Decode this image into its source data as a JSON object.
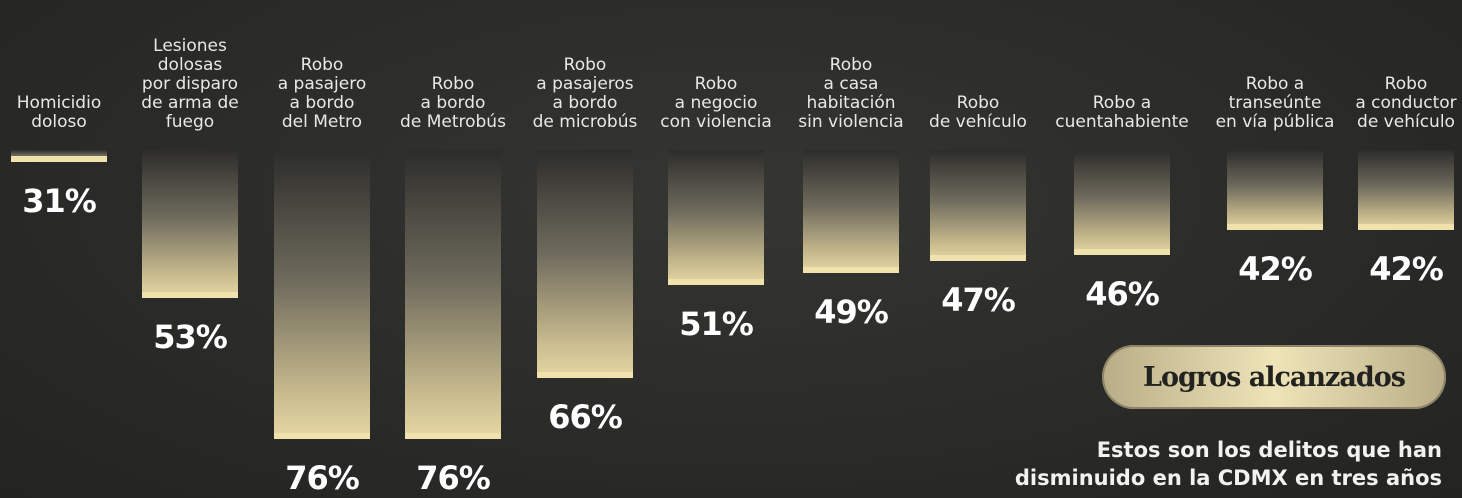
{
  "chart_data": {
    "type": "bar",
    "orientation": "hanging",
    "categories": [
      "Homicidio\ndoloso",
      "Lesiones\ndolosas\npor disparo\nde arma de\nfuego",
      "Robo\na pasajero\na bordo\ndel Metro",
      "Robo\na bordo\nde Metrobús",
      "Robo\na pasajeros\na bordo\nde microbús",
      "Robo\na negocio\ncon violencia",
      "Robo\na casa\nhabitación\nsin violencia",
      "Robo\nde vehículo",
      "Robo a\ncuentahabiente",
      "Robo a\ntranseúnte\nen vía pública",
      "Robo\na conductor\nde vehículo"
    ],
    "values": [
      31,
      53,
      76,
      76,
      66,
      51,
      49,
      47,
      46,
      42,
      42
    ],
    "value_labels": [
      "31%",
      "53%",
      "76%",
      "76%",
      "66%",
      "51%",
      "49%",
      "47%",
      "46%",
      "42%",
      "42%"
    ],
    "unit": "%",
    "title": "Logros alcanzados",
    "subtitle": "Estos son los delitos que han disminuido en la CDMX en tres años",
    "grid": false,
    "legend": "none"
  },
  "colors": {
    "background": "#2b2b29",
    "bar_top": "#2c2c2a",
    "bar_bottom": "#e7d8a4",
    "text": "#ffffff",
    "pill": "#efe4b8"
  }
}
